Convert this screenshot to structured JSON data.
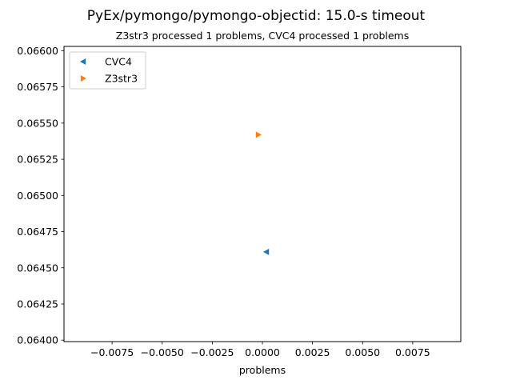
{
  "chart_data": {
    "type": "scatter",
    "title": "PyEx/pymongo/pymongo-objectid: 15.0-s timeout",
    "subtitle": "Z3str3 processed 1 problems, CVC4 processed 1 problems",
    "xlabel": "problems",
    "ylabel": "",
    "xlim": [
      -0.0099,
      0.0099
    ],
    "ylim": [
      0.06399,
      0.06603
    ],
    "x_ticks": [
      -0.0075,
      -0.005,
      -0.0025,
      0.0,
      0.0025,
      0.005,
      0.0075
    ],
    "x_tick_labels": [
      "−0.0075",
      "−0.0050",
      "−0.0025",
      "0.0000",
      "0.0025",
      "0.0050",
      "0.0075"
    ],
    "y_ticks": [
      0.064,
      0.06425,
      0.0645,
      0.06475,
      0.065,
      0.06525,
      0.0655,
      0.06575,
      0.066
    ],
    "y_tick_labels": [
      "0.06400",
      "0.06425",
      "0.06450",
      "0.06475",
      "0.06500",
      "0.06525",
      "0.06550",
      "0.06575",
      "0.06600"
    ],
    "grid": false,
    "legend_position": "top-left",
    "series": [
      {
        "name": "CVC4",
        "marker": "triangle-left",
        "color": "#1f77b4",
        "points": [
          {
            "x": 0.0002,
            "y": 0.06461
          }
        ]
      },
      {
        "name": "Z3str3",
        "marker": "triangle-right",
        "color": "#ff7f0e",
        "points": [
          {
            "x": -0.0002,
            "y": 0.06542
          }
        ]
      }
    ]
  }
}
